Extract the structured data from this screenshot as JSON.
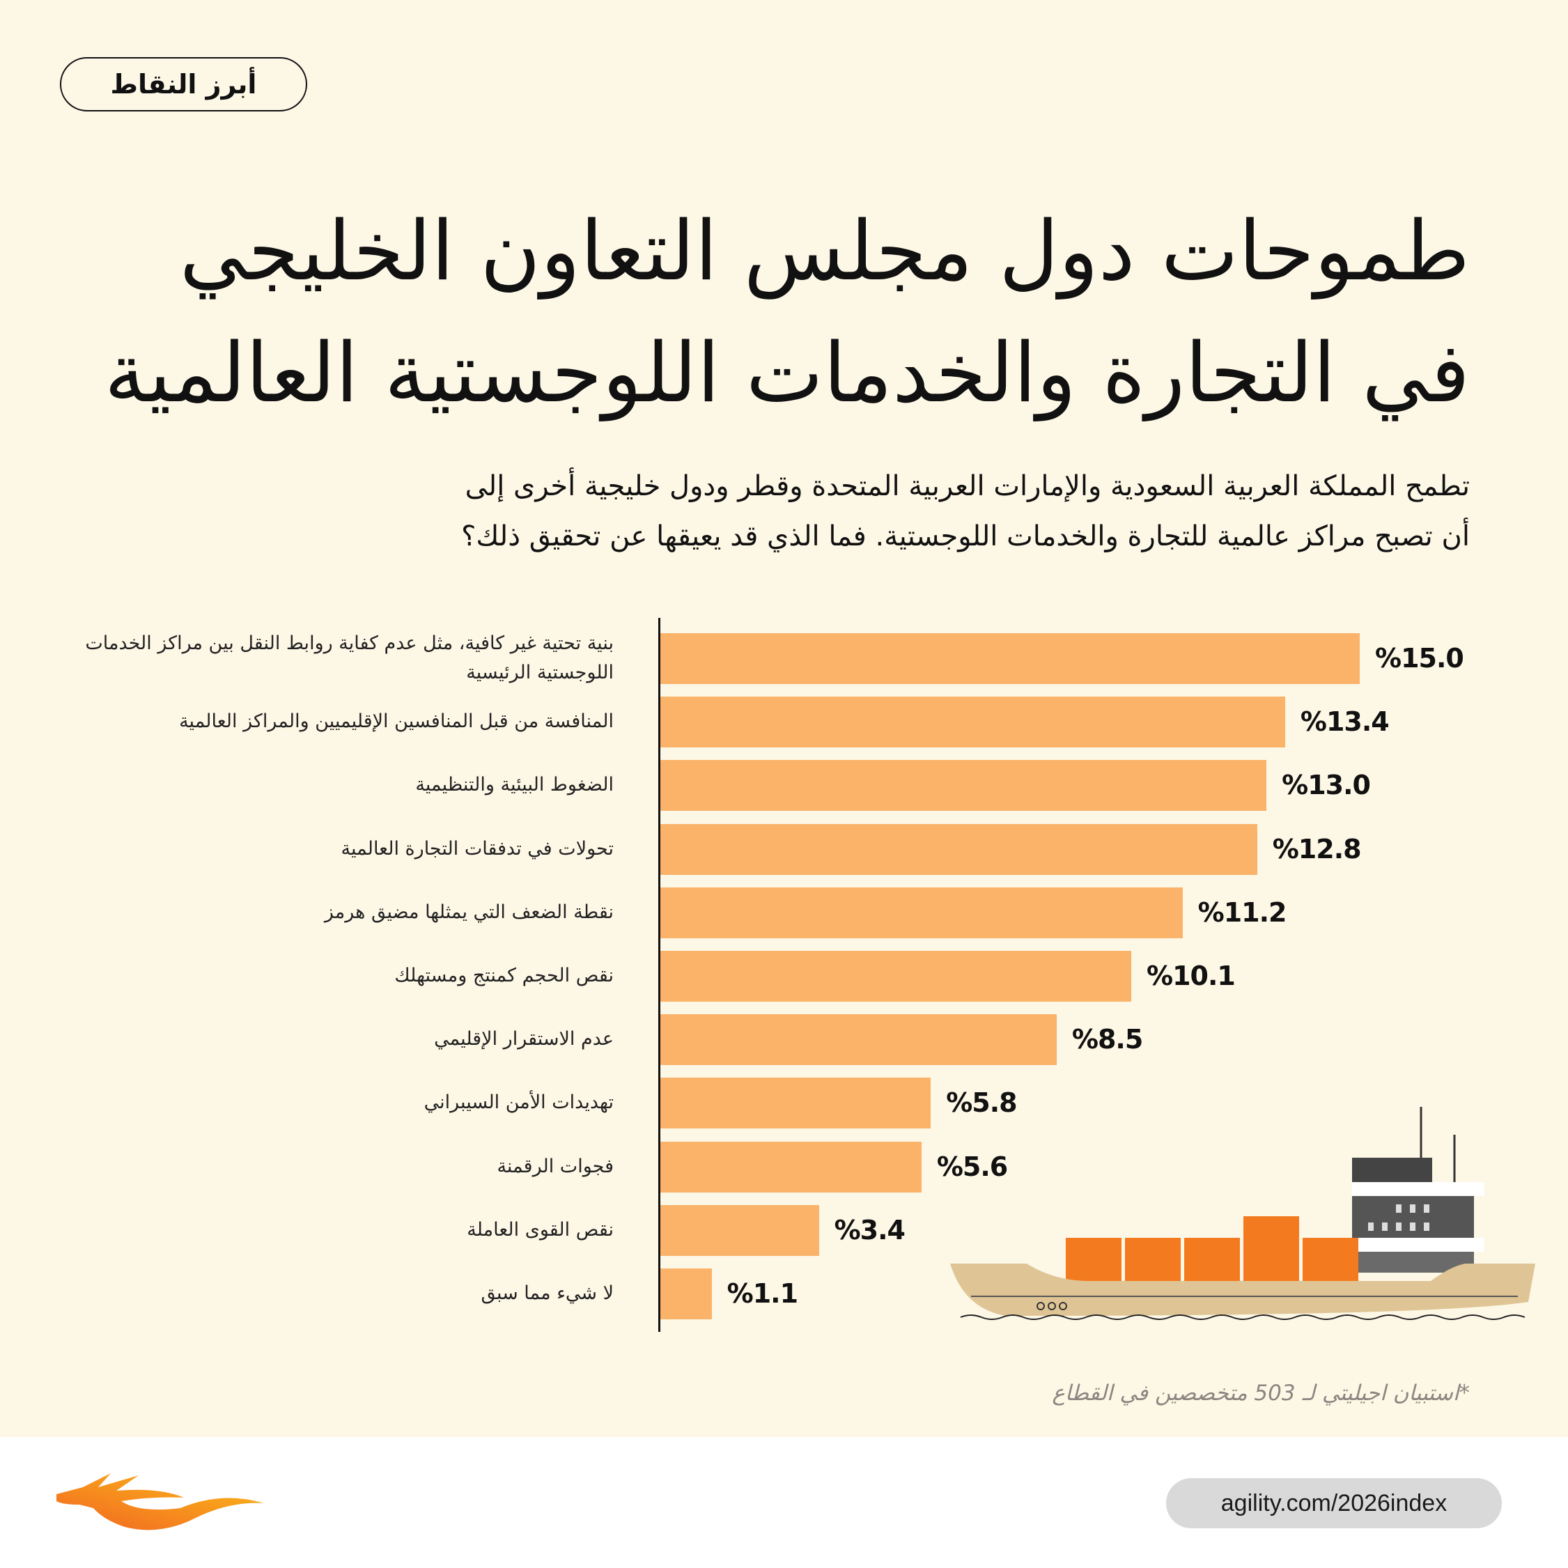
{
  "badge": "أبرز النقاط",
  "title_lines": [
    "طموحات دول مجلس التعاون الخليجي",
    "في التجارة والخدمات اللوجستية العالمية"
  ],
  "subtitle_lines": [
    "تطمح المملكة العربية السعودية والإمارات العربية المتحدة وقطر ودول خليجية أخرى إلى",
    "أن تصبح مراكز عالمية للتجارة والخدمات اللوجستية. فما الذي قد يعيقها عن تحقيق ذلك؟"
  ],
  "chart_data": {
    "type": "bar",
    "orientation": "horizontal",
    "categories": [
      "بنية تحتية غير كافية، مثل عدم كفاية روابط النقل بين مراكز الخدمات اللوجستية الرئيسية",
      "المنافسة من قبل المنافسين الإقليميين والمراكز العالمية",
      "الضغوط البيئية والتنظيمية",
      "تحولات في تدفقات التجارة العالمية",
      "نقطة الضعف التي يمثلها مضيق هرمز",
      "نقص الحجم كمنتج ومستهلك",
      "عدم الاستقرار الإقليمي",
      "تهديدات الأمن السيبراني",
      "فجوات الرقمنة",
      "نقص القوى العاملة",
      "لا شيء مما سبق"
    ],
    "values": [
      15.0,
      13.4,
      13.0,
      12.8,
      11.2,
      10.1,
      8.5,
      5.8,
      5.6,
      3.4,
      1.1
    ],
    "value_labels": [
      "%15.0",
      "%13.4",
      "%13.0",
      "%12.8",
      "%11.2",
      "%10.1",
      "%8.5",
      "%5.8",
      "%5.6",
      "%3.4",
      "%1.1"
    ],
    "xlim": [
      0,
      15
    ],
    "unit": "%",
    "bar_color": "#fbb36a"
  },
  "footnote": "*استبيان اجيليتي لـ 503 متخصصين في القطاع",
  "url": "agility.com/2026index",
  "colors": {
    "background": "#fdf7e6",
    "bar": "#fbb36a"
  }
}
